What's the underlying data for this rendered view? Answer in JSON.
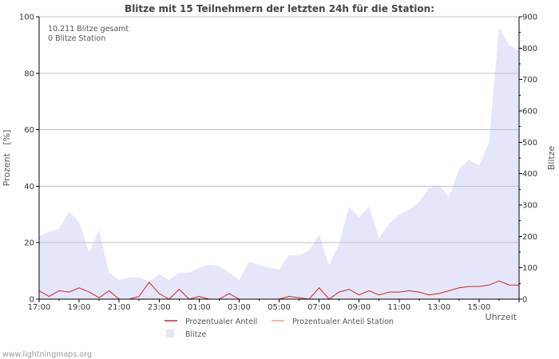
{
  "chart_data": {
    "type": "area",
    "title": "Blitze mit 15 Teilnehmern der letzten 24h für die Station:",
    "annotations": [
      "10.211 Blitze gesamt",
      "0 Blitze Station"
    ],
    "xlabel": "Uhrzeit",
    "ylabel_left": "Prozent   [%]",
    "ylabel_right": "Blitze",
    "x_ticks": [
      "17:00",
      "19:00",
      "21:00",
      "23:00",
      "01:00",
      "03:00",
      "05:00",
      "07:00",
      "09:00",
      "11:00",
      "13:00",
      "15:00"
    ],
    "ylim_left": [
      0,
      100
    ],
    "ylim_right": [
      0,
      900
    ],
    "y_ticks_left": [
      0,
      20,
      40,
      60,
      80,
      100
    ],
    "y_ticks_right": [
      0,
      100,
      200,
      300,
      400,
      500,
      600,
      700,
      800,
      900
    ],
    "x_hours": [
      0,
      0.5,
      1,
      1.5,
      2,
      2.5,
      3,
      3.5,
      4,
      4.5,
      5,
      5.5,
      6,
      6.5,
      7,
      7.5,
      8,
      8.5,
      9,
      9.5,
      10,
      10.5,
      11,
      11.5,
      12,
      12.5,
      13,
      13.5,
      14,
      14.5,
      15,
      15.5,
      16,
      16.5,
      17,
      17.5,
      18,
      18.5,
      19,
      19.5,
      20,
      20.5,
      21,
      21.5,
      22,
      22.5,
      23,
      23.5,
      24
    ],
    "series": [
      {
        "name": "Blitze",
        "axis": "right",
        "color": "#e6e6fa",
        "values": [
          200,
          215,
          225,
          280,
          245,
          150,
          220,
          85,
          60,
          70,
          70,
          55,
          80,
          60,
          85,
          85,
          100,
          110,
          105,
          85,
          60,
          120,
          110,
          100,
          95,
          140,
          140,
          155,
          205,
          110,
          175,
          295,
          260,
          295,
          195,
          240,
          270,
          285,
          310,
          355,
          365,
          325,
          415,
          445,
          425,
          500,
          865,
          810,
          790
        ]
      },
      {
        "name": "Prozentualer Anteil",
        "axis": "left",
        "color": "#d42020",
        "values": [
          3,
          1,
          3,
          2.5,
          4,
          2.5,
          0.5,
          3,
          0,
          0,
          1,
          6,
          2,
          0,
          3.5,
          0,
          1,
          0,
          0,
          2,
          0,
          0,
          0,
          0,
          0,
          1,
          0.5,
          0,
          4,
          0,
          2.5,
          3.5,
          1.5,
          3,
          1.5,
          2.5,
          2.5,
          3,
          2.5,
          1.5,
          2,
          3,
          4,
          4.5,
          4.5,
          5,
          6.5,
          5,
          5
        ]
      },
      {
        "name": "Prozentualer Anteil Station",
        "axis": "left",
        "color": "#f0a0a0",
        "values": []
      }
    ]
  },
  "legend": {
    "items": [
      {
        "label": "Prozentualer Anteil",
        "color": "#d42020",
        "kind": "line"
      },
      {
        "label": "Prozentualer Anteil Station",
        "color": "#f0a0a0",
        "kind": "line"
      },
      {
        "label": "Blitze",
        "color": "#e6e6fa",
        "kind": "box"
      }
    ]
  },
  "footer": {
    "source": "www.lightningmaps.org"
  }
}
